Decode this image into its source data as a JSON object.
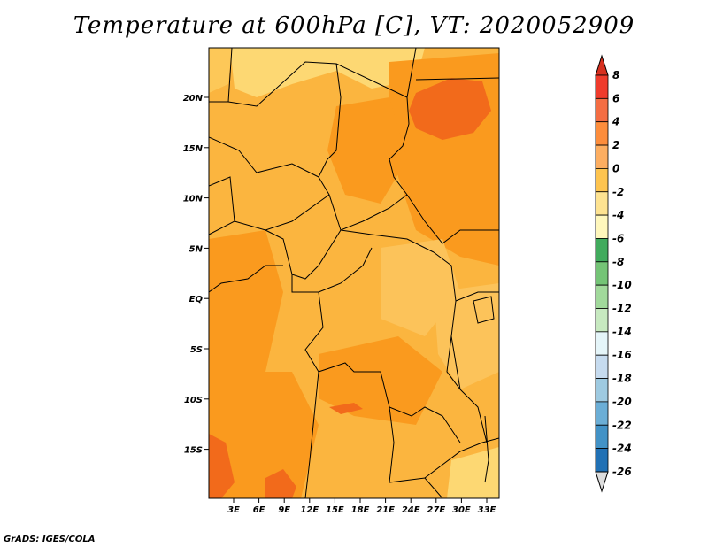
{
  "title": "Temperature at 600hPa [C], VT: 2020052909",
  "credit": "GrADS: IGES/COLA",
  "map": {
    "lon_labels": [
      "3E",
      "6E",
      "9E",
      "12E",
      "15E",
      "18E",
      "21E",
      "24E",
      "27E",
      "30E",
      "33E"
    ],
    "lat_labels": [
      "20N",
      "15N",
      "10N",
      "5N",
      "EQ",
      "5S",
      "10S",
      "15S"
    ]
  },
  "colorbar": {
    "labels": [
      "8",
      "6",
      "4",
      "2",
      "0",
      "-2",
      "-4",
      "-6",
      "-8",
      "-10",
      "-12",
      "-14",
      "-16",
      "-18",
      "-20",
      "-22",
      "-24",
      "-26"
    ],
    "colors": [
      "#d7301f",
      "#ef3b2c",
      "#f46d43",
      "#fd8d3c",
      "#fdae61",
      "#fec44f",
      "#fee391",
      "#fff7bc",
      "#41ab5d",
      "#74c476",
      "#a1d99b",
      "#c7e9c0",
      "#e5f5f9",
      "#c6dbef",
      "#9ecae1",
      "#6baed6",
      "#4292c6",
      "#2171b5",
      "#08519c",
      "#08306b",
      "#dddddd"
    ]
  },
  "legend_colors": {
    "background_field": "#fbb53f",
    "warm_field": "#fa9a1e",
    "hot_field": "#f26a1b",
    "cool_field": "#fdd873"
  }
}
